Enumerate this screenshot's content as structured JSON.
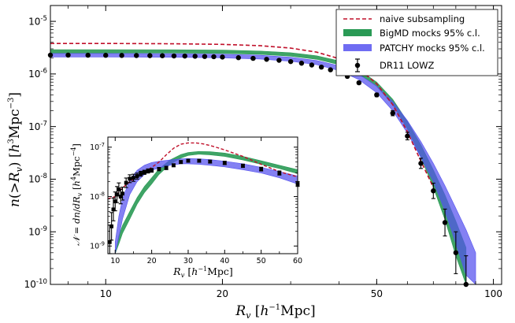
{
  "chart_data": [
    {
      "type": "line",
      "scale": {
        "x": "log",
        "y": "log"
      },
      "xlabel": "R_v [h^-1 Mpc]",
      "ylabel": "n(>R_v) [h^3 Mpc^-3]",
      "xlim": [
        7.2,
        105
      ],
      "ylim": [
        1e-10,
        2e-05
      ],
      "x_ticks": [
        {
          "v": 10,
          "label": "10"
        },
        {
          "v": 20,
          "label": "20"
        },
        {
          "v": 50,
          "label": "50"
        },
        {
          "v": 100,
          "label": "100"
        }
      ],
      "y_ticks": [
        {
          "v": 1e-10,
          "base": "10",
          "exp": "-10"
        },
        {
          "v": 1e-09,
          "base": "10",
          "exp": "-9"
        },
        {
          "v": 1e-08,
          "base": "10",
          "exp": "-8"
        },
        {
          "v": 1e-07,
          "base": "10",
          "exp": "-7"
        },
        {
          "v": 1e-06,
          "base": "10",
          "exp": "-6"
        },
        {
          "v": 1e-05,
          "base": "10",
          "exp": "-5"
        }
      ],
      "legend": {
        "position": "top-right",
        "entries": [
          {
            "label": "naive subsampling",
            "style": "dashed",
            "color": "#c0102a"
          },
          {
            "label": "BigMD mocks 95% c.l.",
            "style": "band",
            "color": "#2a9a55"
          },
          {
            "label": "PATCHY mocks 95% c.l.",
            "style": "band",
            "color": "#6f6cf2"
          },
          {
            "label": "DR11 LOWZ",
            "style": "errorbar",
            "color": "#000000"
          }
        ]
      },
      "series": [
        {
          "name": "naive subsampling",
          "x": [
            7.2,
            10,
            15,
            20,
            25,
            30,
            35,
            40,
            45,
            50,
            55,
            60,
            65,
            70
          ],
          "y": [
            3.8e-06,
            3.8e-06,
            3.75e-06,
            3.65e-06,
            3.45e-06,
            3.1e-06,
            2.6e-06,
            1.95e-06,
            1.25e-06,
            6.5e-07,
            2.6e-07,
            8e-08,
            2.2e-08,
            7e-09
          ]
        },
        {
          "name": "BigMD mocks 95% c.l.",
          "x": [
            7.2,
            10,
            15,
            20,
            25,
            30,
            35,
            40,
            45,
            50,
            55,
            60,
            65,
            70,
            75,
            80,
            85
          ],
          "low": [
            2.5e-06,
            2.5e-06,
            2.5e-06,
            2.46e-06,
            2.36e-06,
            2.18e-06,
            1.9e-06,
            1.5e-06,
            1e-06,
            5.8e-07,
            2.6e-07,
            9e-08,
            2.6e-08,
            7e-09,
            1.7e-09,
            3.5e-10,
            1e-10
          ],
          "high": [
            2.9e-06,
            2.9e-06,
            2.88e-06,
            2.84e-06,
            2.73e-06,
            2.53e-06,
            2.22e-06,
            1.77e-06,
            1.2e-06,
            7e-07,
            3.3e-07,
            1.25e-07,
            4.5e-08,
            1.5e-08,
            5e-09,
            1.6e-09,
            5e-10
          ]
        },
        {
          "name": "PATCHY mocks 95% c.l.",
          "x": [
            7.2,
            10,
            15,
            20,
            25,
            30,
            35,
            40,
            45,
            50,
            55,
            60,
            65,
            70,
            75,
            80,
            85,
            90
          ],
          "low": [
            2.1e-06,
            2.1e-06,
            2.08e-06,
            2.02e-06,
            1.92e-06,
            1.75e-06,
            1.5e-06,
            1.16e-06,
            7.8e-07,
            4.4e-07,
            2e-07,
            7.5e-08,
            2.6e-08,
            9e-09,
            2.5e-09,
            6e-10,
            1.5e-10,
            1e-10
          ],
          "high": [
            2.45e-06,
            2.45e-06,
            2.43e-06,
            2.37e-06,
            2.27e-06,
            2.08e-06,
            1.8e-06,
            1.43e-06,
            9.8e-07,
            5.9e-07,
            3e-07,
            1.3e-07,
            5.2e-08,
            2e-08,
            7.5e-09,
            2.8e-09,
            1.1e-09,
            4e-10
          ]
        },
        {
          "name": "DR11 LOWZ",
          "x": [
            7.2,
            8,
            9,
            10,
            11,
            12,
            13,
            14,
            15,
            16,
            17,
            18,
            19,
            20,
            22,
            24,
            26,
            28,
            30,
            32,
            34,
            36,
            38,
            40,
            42,
            45,
            50,
            55,
            60,
            65,
            70,
            75,
            80,
            85
          ],
          "y": [
            2.28e-06,
            2.28e-06,
            2.27e-06,
            2.26e-06,
            2.25e-06,
            2.24e-06,
            2.23e-06,
            2.22e-06,
            2.2e-06,
            2.19e-06,
            2.17e-06,
            2.15e-06,
            2.13e-06,
            2.1e-06,
            2.04e-06,
            1.98e-06,
            1.9e-06,
            1.82e-06,
            1.72e-06,
            1.6e-06,
            1.48e-06,
            1.35e-06,
            1.2e-06,
            1.05e-06,
            9e-07,
            6.8e-07,
            4e-07,
            1.8e-07,
            6.6e-08,
            2e-08,
            6e-09,
            1.5e-09,
            4e-10,
            1e-10
          ],
          "yerr_factor": [
            1.02,
            1.02,
            1.02,
            1.02,
            1.02,
            1.02,
            1.02,
            1.02,
            1.02,
            1.02,
            1.02,
            1.02,
            1.02,
            1.02,
            1.02,
            1.03,
            1.03,
            1.03,
            1.03,
            1.03,
            1.03,
            1.04,
            1.04,
            1.04,
            1.05,
            1.06,
            1.08,
            1.12,
            1.18,
            1.25,
            1.4,
            1.8,
            2.5,
            3.5
          ]
        }
      ]
    },
    {
      "type": "line",
      "inset": true,
      "scale": {
        "x": "linear",
        "y": "log"
      },
      "xlabel": "R_v [h^-1 Mpc]",
      "ylabel": "N = dn/dR_v [h^4 Mpc^-4]",
      "xlim": [
        8,
        60
      ],
      "ylim": [
        7e-10,
        1.6e-07
      ],
      "x_ticks": [
        {
          "v": 10,
          "label": "10"
        },
        {
          "v": 20,
          "label": "20"
        },
        {
          "v": 30,
          "label": "30"
        },
        {
          "v": 40,
          "label": "40"
        },
        {
          "v": 50,
          "label": "50"
        },
        {
          "v": 60,
          "label": "60"
        }
      ],
      "y_ticks": [
        {
          "v": 1e-09,
          "base": "10",
          "exp": "-9"
        },
        {
          "v": 1e-08,
          "base": "10",
          "exp": "-8"
        },
        {
          "v": 1e-07,
          "base": "10",
          "exp": "-7"
        }
      ],
      "series": [
        {
          "name": "naive subsampling",
          "x": [
            8,
            10,
            12,
            14,
            16,
            18,
            20,
            22,
            24,
            26,
            28,
            30,
            32,
            34,
            36,
            38,
            40,
            45,
            50,
            55,
            60
          ],
          "y": [
            9e-09,
            1e-08,
            1.5e-08,
            2e-08,
            2.5e-08,
            3.1e-08,
            3.9e-08,
            5e-08,
            7e-08,
            9.5e-08,
            1.15e-07,
            1.22e-07,
            1.22e-07,
            1.17e-07,
            1.08e-07,
            9.8e-08,
            8.8e-08,
            6.5e-08,
            4.5e-08,
            3.2e-08,
            2.5e-08
          ]
        },
        {
          "name": "BigMD mocks 95% c.l.",
          "x": [
            10,
            11,
            12,
            14,
            16,
            18,
            20,
            22,
            25,
            28,
            30,
            33,
            36,
            40,
            45,
            50,
            55,
            60
          ],
          "low": [
            7e-10,
            1.1e-09,
            1.8e-09,
            3.5e-09,
            7e-09,
            1.2e-08,
            1.8e-08,
            2.8e-08,
            4.5e-08,
            6e-08,
            6.8e-08,
            7.2e-08,
            7e-08,
            6.5e-08,
            5.5e-08,
            4.5e-08,
            3.7e-08,
            2.9e-08
          ],
          "high": [
            7e-10,
            1.6e-09,
            2.6e-09,
            5e-09,
            9.5e-09,
            1.6e-08,
            2.4e-08,
            3.6e-08,
            5.5e-08,
            7.1e-08,
            7.8e-08,
            8.2e-08,
            8.1e-08,
            7.6e-08,
            6.5e-08,
            5.3e-08,
            4.3e-08,
            3.5e-08
          ]
        },
        {
          "name": "PATCHY mocks 95% c.l.",
          "x": [
            10,
            11,
            12,
            14,
            16,
            18,
            20,
            22,
            25,
            28,
            30,
            33,
            36,
            40,
            45,
            50,
            55,
            60
          ],
          "low": [
            7e-10,
            1.5e-09,
            3.5e-09,
            1.1e-08,
            2e-08,
            2.8e-08,
            3.4e-08,
            3.8e-08,
            4.3e-08,
            4.6e-08,
            4.6e-08,
            4.5e-08,
            4.3e-08,
            4e-08,
            3.5e-08,
            3e-08,
            2.4e-08,
            1.8e-08
          ],
          "high": [
            1.2e-09,
            4e-09,
            9e-09,
            2.2e-08,
            3.4e-08,
            4.3e-08,
            4.9e-08,
            5.2e-08,
            5.5e-08,
            5.8e-08,
            5.9e-08,
            5.8e-08,
            5.6e-08,
            5.2e-08,
            4.6e-08,
            3.9e-08,
            3.2e-08,
            2.6e-08
          ]
        },
        {
          "name": "DR11 LOWZ",
          "x": [
            8.5,
            9,
            9.5,
            10,
            10.5,
            11,
            11.5,
            12,
            13,
            14,
            15,
            16,
            17,
            18,
            19,
            20,
            22,
            24,
            26,
            28,
            30,
            33,
            36,
            40,
            45,
            50,
            55,
            60
          ],
          "y": [
            1.2e-09,
            2.5e-09,
            5.5e-09,
            8e-09,
            1.1e-08,
            1.4e-08,
            1e-08,
            1.15e-08,
            1.9e-08,
            2.3e-08,
            2.4e-08,
            2.6e-08,
            2.9e-08,
            3.1e-08,
            3.3e-08,
            3.4e-08,
            3.6e-08,
            3.8e-08,
            4.3e-08,
            5e-08,
            5.3e-08,
            5.3e-08,
            5.1e-08,
            4.8e-08,
            4.2e-08,
            3.6e-08,
            3e-08,
            1.8e-08
          ],
          "yerr_factor": [
            2.2,
            1.9,
            1.7,
            1.55,
            1.45,
            1.35,
            1.4,
            1.35,
            1.25,
            1.2,
            1.18,
            1.15,
            1.12,
            1.1,
            1.1,
            1.09,
            1.08,
            1.08,
            1.07,
            1.07,
            1.07,
            1.07,
            1.07,
            1.08,
            1.08,
            1.09,
            1.1,
            1.12
          ]
        }
      ]
    }
  ]
}
